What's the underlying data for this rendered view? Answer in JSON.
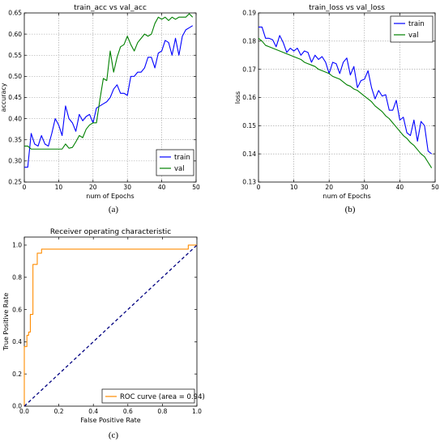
{
  "chart_data": [
    {
      "type": "line",
      "title": "train_acc vs val_acc",
      "xlabel": "num of Epochs",
      "ylabel": "accuracy",
      "caption": "(a)",
      "xlim": [
        0,
        50
      ],
      "ylim": [
        0.25,
        0.65
      ],
      "xticks": [
        "0",
        "10",
        "20",
        "30",
        "40",
        "50"
      ],
      "yticks": [
        "0.25",
        "0.30",
        "0.35",
        "0.40",
        "0.45",
        "0.50",
        "0.55",
        "0.60",
        "0.65"
      ],
      "grid": true,
      "legend_position": "bottom-right",
      "series": [
        {
          "name": "train",
          "color": "#0000ff",
          "x": [
            0,
            1,
            2,
            3,
            4,
            5,
            6,
            7,
            8,
            9,
            10,
            11,
            12,
            13,
            14,
            15,
            16,
            17,
            18,
            19,
            20,
            21,
            22,
            23,
            24,
            25,
            26,
            27,
            28,
            29,
            30,
            31,
            32,
            33,
            34,
            35,
            36,
            37,
            38,
            39,
            40,
            41,
            42,
            43,
            44,
            45,
            46,
            47,
            48,
            49
          ],
          "y": [
            0.285,
            0.285,
            0.365,
            0.34,
            0.335,
            0.36,
            0.34,
            0.335,
            0.365,
            0.4,
            0.385,
            0.36,
            0.43,
            0.4,
            0.39,
            0.37,
            0.41,
            0.395,
            0.405,
            0.41,
            0.39,
            0.425,
            0.43,
            0.435,
            0.44,
            0.45,
            0.47,
            0.48,
            0.46,
            0.46,
            0.455,
            0.5,
            0.5,
            0.51,
            0.51,
            0.52,
            0.545,
            0.545,
            0.52,
            0.555,
            0.56,
            0.585,
            0.58,
            0.55,
            0.59,
            0.55,
            0.595,
            0.61,
            0.615,
            0.62
          ]
        },
        {
          "name": "val",
          "color": "#008000",
          "x": [
            0,
            1,
            2,
            3,
            4,
            5,
            6,
            7,
            8,
            9,
            10,
            11,
            12,
            13,
            14,
            15,
            16,
            17,
            18,
            19,
            20,
            21,
            22,
            23,
            24,
            25,
            26,
            27,
            28,
            29,
            30,
            31,
            32,
            33,
            34,
            35,
            36,
            37,
            38,
            39,
            40,
            41,
            42,
            43,
            44,
            45,
            46,
            47,
            48,
            49
          ],
          "y": [
            0.335,
            0.335,
            0.328,
            0.328,
            0.328,
            0.328,
            0.328,
            0.328,
            0.328,
            0.328,
            0.328,
            0.328,
            0.34,
            0.33,
            0.332,
            0.345,
            0.36,
            0.355,
            0.375,
            0.385,
            0.39,
            0.39,
            0.445,
            0.495,
            0.49,
            0.56,
            0.51,
            0.545,
            0.57,
            0.575,
            0.595,
            0.575,
            0.56,
            0.58,
            0.59,
            0.6,
            0.595,
            0.6,
            0.625,
            0.64,
            0.635,
            0.64,
            0.632,
            0.64,
            0.635,
            0.64,
            0.64,
            0.64,
            0.648,
            0.64
          ]
        }
      ]
    },
    {
      "type": "line",
      "title": "train_loss vs val_loss",
      "xlabel": "num of Epochs",
      "ylabel": "loss",
      "caption": "(b)",
      "xlim": [
        0,
        50
      ],
      "ylim": [
        0.13,
        0.19
      ],
      "xticks": [
        "0",
        "10",
        "20",
        "30",
        "40",
        "50"
      ],
      "yticks": [
        "0.13",
        "0.14",
        "0.15",
        "0.16",
        "0.17",
        "0.18",
        "0.19"
      ],
      "grid": true,
      "legend_position": "top-right",
      "series": [
        {
          "name": "train",
          "color": "#0000ff",
          "x": [
            0,
            1,
            2,
            3,
            4,
            5,
            6,
            7,
            8,
            9,
            10,
            11,
            12,
            13,
            14,
            15,
            16,
            17,
            18,
            19,
            20,
            21,
            22,
            23,
            24,
            25,
            26,
            27,
            28,
            29,
            30,
            31,
            32,
            33,
            34,
            35,
            36,
            37,
            38,
            39,
            40,
            41,
            42,
            43,
            44,
            45,
            46,
            47,
            48,
            49
          ],
          "y": [
            0.185,
            0.185,
            0.181,
            0.181,
            0.1805,
            0.178,
            0.182,
            0.1795,
            0.176,
            0.1775,
            0.1765,
            0.1775,
            0.175,
            0.1765,
            0.176,
            0.1725,
            0.175,
            0.1735,
            0.1745,
            0.1725,
            0.1685,
            0.1725,
            0.172,
            0.1685,
            0.1725,
            0.174,
            0.168,
            0.171,
            0.1635,
            0.166,
            0.1665,
            0.1695,
            0.1635,
            0.1595,
            0.1625,
            0.1605,
            0.161,
            0.1555,
            0.1555,
            0.159,
            0.152,
            0.153,
            0.1475,
            0.1465,
            0.152,
            0.1445,
            0.1515,
            0.15,
            0.141,
            0.14
          ]
        },
        {
          "name": "val",
          "color": "#008000",
          "x": [
            0,
            1,
            2,
            3,
            4,
            5,
            6,
            7,
            8,
            9,
            10,
            11,
            12,
            13,
            14,
            15,
            16,
            17,
            18,
            19,
            20,
            21,
            22,
            23,
            24,
            25,
            26,
            27,
            28,
            29,
            30,
            31,
            32,
            33,
            34,
            35,
            36,
            37,
            38,
            39,
            40,
            41,
            42,
            43,
            44,
            45,
            46,
            47,
            48,
            49
          ],
          "y": [
            0.181,
            0.18,
            0.1785,
            0.178,
            0.1775,
            0.177,
            0.1765,
            0.176,
            0.1755,
            0.175,
            0.1745,
            0.174,
            0.1735,
            0.1725,
            0.172,
            0.1715,
            0.171,
            0.17,
            0.1695,
            0.169,
            0.1685,
            0.1675,
            0.167,
            0.1665,
            0.1655,
            0.1645,
            0.164,
            0.163,
            0.1625,
            0.1615,
            0.1605,
            0.1595,
            0.1585,
            0.157,
            0.156,
            0.155,
            0.1535,
            0.1525,
            0.151,
            0.1495,
            0.148,
            0.1465,
            0.1455,
            0.144,
            0.143,
            0.1415,
            0.14,
            0.139,
            0.137,
            0.135
          ]
        }
      ]
    },
    {
      "type": "line",
      "title": "Receiver operating characteristic",
      "xlabel": "False Positive Rate",
      "ylabel": "True Positive Rate",
      "caption": "(c)",
      "xlim": [
        0,
        1
      ],
      "ylim": [
        0,
        1.05
      ],
      "xticks": [
        "0.0",
        "0.2",
        "0.4",
        "0.6",
        "0.8",
        "1.0"
      ],
      "yticks": [
        "0.0",
        "0.2",
        "0.4",
        "0.6",
        "0.8",
        "1.0"
      ],
      "grid": false,
      "legend_position": "bottom-right",
      "series": [
        {
          "name": "ROC curve (area = 0.94)",
          "color": "#ff8c00",
          "x": [
            0,
            0,
            0.015,
            0.015,
            0.025,
            0.025,
            0.035,
            0.035,
            0.05,
            0.05,
            0.075,
            0.075,
            0.1,
            0.1,
            0.95,
            0.95,
            1.0
          ],
          "y": [
            0,
            0.37,
            0.37,
            0.44,
            0.44,
            0.46,
            0.46,
            0.57,
            0.57,
            0.88,
            0.88,
            0.95,
            0.95,
            0.975,
            0.975,
            1.0,
            1.0
          ]
        },
        {
          "color": "#000080",
          "dashed": true,
          "x": [
            0,
            1
          ],
          "y": [
            0,
            1
          ]
        }
      ]
    }
  ]
}
